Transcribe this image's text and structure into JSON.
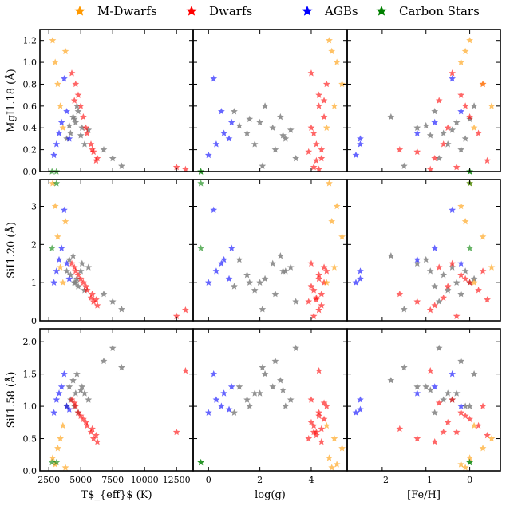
{
  "legend": {
    "placement": "top-center",
    "entries": [
      {
        "label": "M-Dwarfs",
        "color": "#ff9900",
        "marker": "star"
      },
      {
        "label": "Dwarfs",
        "color": "#ff0000",
        "marker": "star"
      },
      {
        "label": "AGBs",
        "color": "#0000ff",
        "marker": "star"
      },
      {
        "label": "Carbon Stars",
        "color": "#008000",
        "marker": "star"
      }
    ]
  },
  "chart_data": {
    "type": "scatter",
    "grid": false,
    "legend_placement": "top-center",
    "columns": [
      {
        "key": "teff",
        "xlabel": "T$_{eff}$ (K)",
        "xlim": [
          1800,
          13800
        ],
        "xticks": [
          2500,
          5000,
          7500,
          10000,
          12500
        ],
        "xticklabels": [
          "2500",
          "5000",
          "7500",
          "10000",
          "12500"
        ]
      },
      {
        "key": "logg",
        "xlabel": "log(g)",
        "xlim": [
          -0.6,
          5.4
        ],
        "xticks": [
          0,
          2,
          4
        ],
        "xticklabels": [
          "0",
          "2",
          "4"
        ]
      },
      {
        "key": "feh",
        "xlabel": "[Fe/H]",
        "xlim": [
          -2.8,
          0.7
        ],
        "xticks": [
          -2,
          -1,
          0
        ],
        "xticklabels": [
          "−2",
          "−1",
          "0"
        ]
      }
    ],
    "rows": [
      {
        "key": "mg118",
        "ylabel": "MgI1.18 (Å)",
        "ylim": [
          0,
          1.3
        ],
        "yticks": [
          0,
          0.2,
          0.4,
          0.6,
          0.8,
          1.0,
          1.2
        ],
        "yticklabels": [
          "0.0",
          "0.2",
          "0.4",
          "0.6",
          "0.8",
          "1.0",
          "1.2"
        ]
      },
      {
        "key": "si120",
        "ylabel": "SiI1.20 (Å)",
        "ylim": [
          0,
          3.7
        ],
        "yticks": [
          0,
          1,
          2,
          3
        ],
        "yticklabels": [
          "0",
          "1",
          "2",
          "3"
        ]
      },
      {
        "key": "si158",
        "ylabel": "SiI1.58 (Å)",
        "ylim": [
          0,
          2.2
        ],
        "yticks": [
          0,
          0.5,
          1.0,
          1.5,
          2.0
        ],
        "yticklabels": [
          "0.0",
          "0.5",
          "1.0",
          "1.5",
          "2.0"
        ]
      }
    ],
    "series": [
      {
        "name": "unlabeled (gray)",
        "color": "#808080",
        "teff": [
          4200,
          4600,
          5100,
          4800,
          3900,
          4400,
          5300,
          4700,
          5600,
          4100,
          6800,
          7500,
          8200,
          4500,
          5000
        ],
        "logg": [
          1.5,
          2.0,
          2.5,
          1.0,
          3.0,
          2.8,
          1.8,
          2.2,
          3.2,
          1.2,
          2.6,
          3.4,
          2.1,
          1.6,
          2.9
        ],
        "feh": [
          -0.6,
          -0.3,
          -1.2,
          -0.8,
          -0.1,
          -1.8,
          -0.5,
          0.1,
          -0.4,
          -1.0,
          -0.2,
          -0.7,
          -1.5,
          0.0,
          -0.9
        ],
        "mg118": [
          0.35,
          0.45,
          0.4,
          0.55,
          0.3,
          0.5,
          0.25,
          0.6,
          0.38,
          0.42,
          0.2,
          0.12,
          0.05,
          0.48,
          0.33
        ],
        "si120": [
          1.2,
          1.0,
          1.5,
          0.9,
          1.3,
          1.7,
          0.8,
          1.1,
          1.4,
          1.6,
          0.7,
          0.5,
          0.3,
          1.0,
          1.3
        ],
        "si158": [
          1.1,
          1.2,
          1.3,
          0.9,
          1.0,
          1.4,
          1.2,
          1.5,
          1.1,
          1.3,
          1.7,
          1.9,
          1.6,
          1.0,
          1.25
        ]
      },
      {
        "name": "Dwarfs",
        "color": "#ff0000",
        "teff": [
          4300,
          4800,
          5200,
          5500,
          5800,
          6000,
          6300,
          4600,
          5000,
          5400,
          5900,
          6200,
          12500,
          13200,
          4500
        ],
        "logg": [
          4.0,
          4.3,
          4.5,
          4.1,
          4.2,
          3.9,
          4.4,
          4.6,
          4.3,
          4.0,
          4.4,
          4.2,
          4.1,
          4.3,
          4.5
        ],
        "feh": [
          -0.4,
          -0.2,
          0.0,
          0.2,
          -0.6,
          -1.2,
          -0.8,
          0.3,
          -0.1,
          -0.5,
          -1.6,
          0.4,
          -0.3,
          -0.9,
          -0.7
        ],
        "mg118": [
          0.9,
          0.7,
          0.5,
          0.35,
          0.25,
          0.18,
          0.12,
          0.8,
          0.6,
          0.4,
          0.2,
          0.1,
          0.04,
          0.02,
          0.65
        ],
        "si120": [
          1.5,
          1.2,
          1.0,
          0.8,
          0.6,
          0.5,
          0.4,
          1.3,
          1.1,
          0.9,
          0.7,
          0.55,
          0.12,
          0.28,
          1.4
        ],
        "si158": [
          1.1,
          0.9,
          0.8,
          0.7,
          0.6,
          0.5,
          0.45,
          1.0,
          0.85,
          0.75,
          0.65,
          0.55,
          0.6,
          1.55,
          1.05
        ]
      },
      {
        "name": "M-Dwarfs",
        "color": "#ff9900",
        "teff": [
          2800,
          3000,
          3200,
          3400,
          3600,
          3800
        ],
        "logg": [
          4.7,
          5.0,
          5.2,
          4.9,
          4.6,
          4.8
        ],
        "feh": [
          0.0,
          -0.2,
          0.3,
          0.5,
          0.1,
          -0.1
        ],
        "mg118": [
          1.2,
          1.0,
          0.8,
          0.6,
          0.4,
          1.1
        ],
        "si120": [
          3.6,
          3.0,
          2.2,
          1.4,
          1.0,
          2.6
        ],
        "si158": [
          0.2,
          0.1,
          0.35,
          0.5,
          0.7,
          0.05
        ]
      },
      {
        "name": "AGBs",
        "color": "#0000ff",
        "teff": [
          2900,
          3100,
          3300,
          3500,
          3700,
          3900,
          4100
        ],
        "logg": [
          0.0,
          0.3,
          0.6,
          0.9,
          0.2,
          0.5,
          0.8
        ],
        "feh": [
          -2.6,
          -2.5,
          -1.2,
          -0.8,
          -0.4,
          -0.2,
          -2.5
        ],
        "mg118": [
          0.15,
          0.25,
          0.35,
          0.45,
          0.85,
          0.55,
          0.3
        ],
        "si120": [
          1.0,
          1.3,
          1.6,
          1.9,
          2.9,
          1.5,
          1.1
        ],
        "si158": [
          0.9,
          1.1,
          1.2,
          1.3,
          1.5,
          1.0,
          0.95
        ]
      },
      {
        "name": "Carbon Stars",
        "color": "#008000",
        "teff": [
          3100,
          2750
        ],
        "logg": [
          -0.3,
          -0.3
        ],
        "feh": [
          0.0,
          0.0
        ],
        "mg118": [
          0.0,
          0.0
        ],
        "si120": [
          3.6,
          1.9
        ],
        "si158": [
          0.13,
          0.13
        ]
      }
    ]
  }
}
